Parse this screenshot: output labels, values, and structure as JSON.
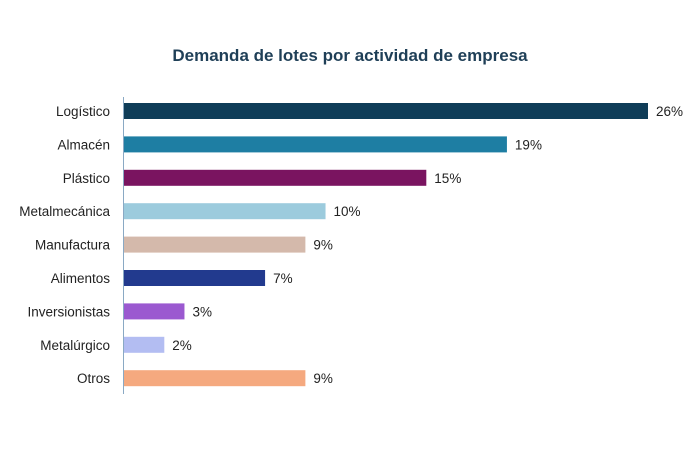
{
  "chart_data": {
    "type": "bar",
    "orientation": "horizontal",
    "title": "Demanda de lotes por actividad de empresa",
    "categories": [
      "Logístico",
      "Almacén",
      "Plástico",
      "Metalmecánica",
      "Manufactura",
      "Alimentos",
      "Inversionistas",
      "Metalúrgico",
      "Otros"
    ],
    "values": [
      26,
      19,
      15,
      10,
      9,
      7,
      3,
      2,
      9
    ],
    "value_labels": [
      "26%",
      "19%",
      "15%",
      "10%",
      "9%",
      "7%",
      "3%",
      "2%",
      "9%"
    ],
    "colors": [
      "#0f3d58",
      "#1e7ea3",
      "#7a1460",
      "#9ccbdd",
      "#d4b9ab",
      "#223a8e",
      "#9b59d0",
      "#b3bdf2",
      "#f5a97f"
    ],
    "xlim": [
      0,
      26
    ],
    "grid": false,
    "legend": "none"
  }
}
